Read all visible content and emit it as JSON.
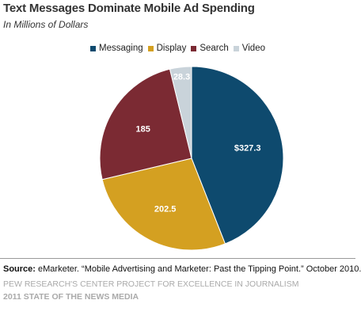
{
  "header": {
    "title": "Text Messages  Dominate Mobile Ad Spending",
    "subtitle": "In Millions of Dollars"
  },
  "chart_data": {
    "type": "pie",
    "title": "Text Messages  Dominate Mobile Ad Spending",
    "subtitle": "In Millions of Dollars",
    "legend_position": "top",
    "slices": [
      {
        "name": "Messaging",
        "value": 327.3,
        "label": "$327.3",
        "color": "#0e4a6e"
      },
      {
        "name": "Display",
        "value": 202.5,
        "label": "202.5",
        "color": "#d4a021"
      },
      {
        "name": "Search",
        "value": 185,
        "label": "185",
        "color": "#7b2a33"
      },
      {
        "name": "Video",
        "value": 28.3,
        "label": "28.3",
        "color": "#c9d3da"
      }
    ]
  },
  "footer": {
    "source_prefix": "Source:",
    "source_text": " eMarketer. “Mobile Advertising and Marketer: Past the Tipping Point.” October 2010.",
    "org_line1": "PEW RESEARCH'S CENTER PROJECT FOR EXCELLENCE IN JOURNALISM",
    "org_line2": "2011 STATE OF THE NEWS MEDIA"
  }
}
